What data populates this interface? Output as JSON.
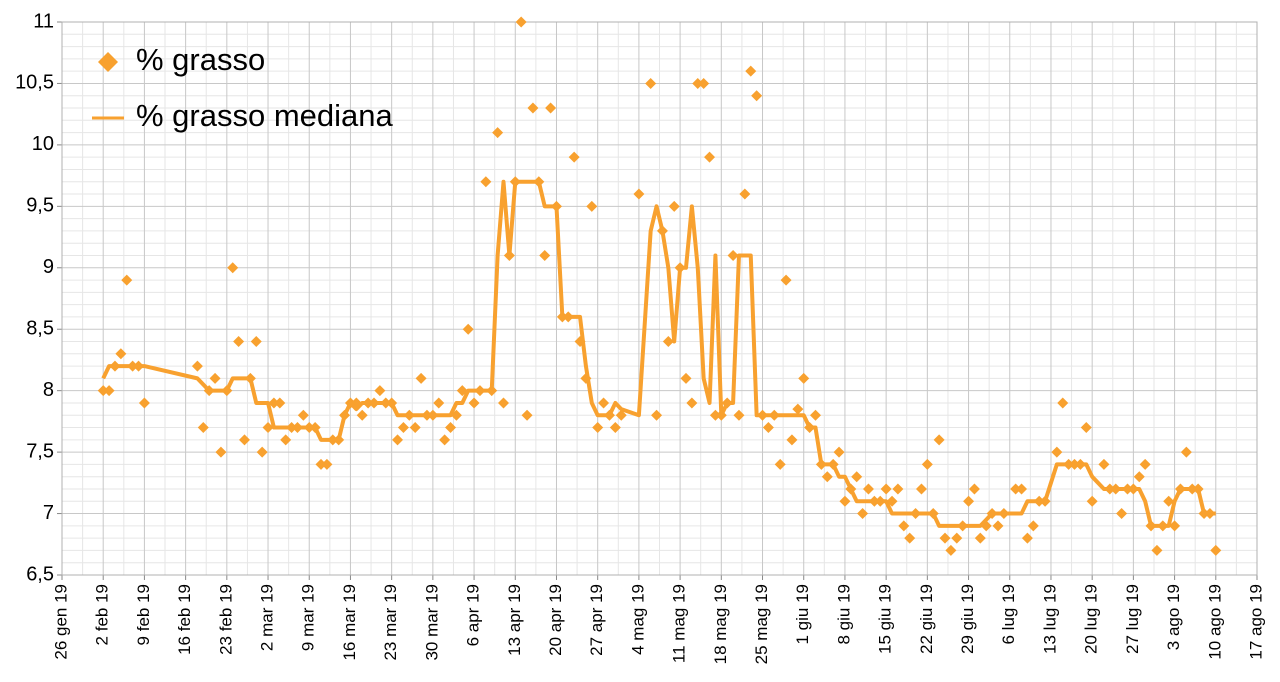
{
  "chart_data": {
    "type": "scatter",
    "x": [
      "2019-02-02",
      "2019-02-03",
      "2019-02-04",
      "2019-02-05",
      "2019-02-06",
      "2019-02-07",
      "2019-02-08",
      "2019-02-09",
      "2019-02-18",
      "2019-02-19",
      "2019-02-20",
      "2019-02-21",
      "2019-02-22",
      "2019-02-23",
      "2019-02-24",
      "2019-02-25",
      "2019-02-26",
      "2019-02-27",
      "2019-02-28",
      "2019-03-01",
      "2019-03-02",
      "2019-03-03",
      "2019-03-04",
      "2019-03-05",
      "2019-03-06",
      "2019-03-07",
      "2019-03-08",
      "2019-03-09",
      "2019-03-10",
      "2019-03-11",
      "2019-03-12",
      "2019-03-13",
      "2019-03-14",
      "2019-03-15",
      "2019-03-16",
      "2019-03-17",
      "2019-03-18",
      "2019-03-19",
      "2019-03-20",
      "2019-03-21",
      "2019-03-22",
      "2019-03-23",
      "2019-03-24",
      "2019-03-25",
      "2019-03-26",
      "2019-03-27",
      "2019-03-28",
      "2019-03-29",
      "2019-03-30",
      "2019-03-31",
      "2019-04-01",
      "2019-04-02",
      "2019-04-03",
      "2019-04-04",
      "2019-04-05",
      "2019-04-06",
      "2019-04-07",
      "2019-04-08",
      "2019-04-09",
      "2019-04-10",
      "2019-04-11",
      "2019-04-12",
      "2019-04-13",
      "2019-04-14",
      "2019-04-15",
      "2019-04-16",
      "2019-04-17",
      "2019-04-18",
      "2019-04-19",
      "2019-04-20",
      "2019-04-21",
      "2019-04-22",
      "2019-04-23",
      "2019-04-24",
      "2019-04-25",
      "2019-04-26",
      "2019-04-27",
      "2019-04-28",
      "2019-04-29",
      "2019-04-30",
      "2019-05-01",
      "2019-05-04",
      "2019-05-06",
      "2019-05-07",
      "2019-05-08",
      "2019-05-09",
      "2019-05-10",
      "2019-05-11",
      "2019-05-12",
      "2019-05-13",
      "2019-05-14",
      "2019-05-15",
      "2019-05-16",
      "2019-05-17",
      "2019-05-18",
      "2019-05-19",
      "2019-05-20",
      "2019-05-21",
      "2019-05-22",
      "2019-05-23",
      "2019-05-24",
      "2019-05-25",
      "2019-05-26",
      "2019-05-27",
      "2019-05-28",
      "2019-05-29",
      "2019-05-30",
      "2019-05-31",
      "2019-06-01",
      "2019-06-02",
      "2019-06-03",
      "2019-06-04",
      "2019-06-05",
      "2019-06-06",
      "2019-06-07",
      "2019-06-08",
      "2019-06-09",
      "2019-06-10",
      "2019-06-11",
      "2019-06-12",
      "2019-06-13",
      "2019-06-14",
      "2019-06-15",
      "2019-06-16",
      "2019-06-17",
      "2019-06-18",
      "2019-06-19",
      "2019-06-20",
      "2019-06-21",
      "2019-06-22",
      "2019-06-23",
      "2019-06-24",
      "2019-06-25",
      "2019-06-26",
      "2019-06-27",
      "2019-06-28",
      "2019-06-29",
      "2019-06-30",
      "2019-07-01",
      "2019-07-02",
      "2019-07-03",
      "2019-07-04",
      "2019-07-05",
      "2019-07-07",
      "2019-07-08",
      "2019-07-09",
      "2019-07-10",
      "2019-07-11",
      "2019-07-12",
      "2019-07-14",
      "2019-07-15",
      "2019-07-16",
      "2019-07-17",
      "2019-07-18",
      "2019-07-19",
      "2019-07-20",
      "2019-07-22",
      "2019-07-23",
      "2019-07-24",
      "2019-07-25",
      "2019-07-26",
      "2019-07-27",
      "2019-07-28",
      "2019-07-29",
      "2019-07-30",
      "2019-07-31",
      "2019-08-01",
      "2019-08-02",
      "2019-08-03",
      "2019-08-04",
      "2019-08-05",
      "2019-08-06",
      "2019-08-07",
      "2019-08-08",
      "2019-08-09",
      "2019-08-10"
    ],
    "series": [
      {
        "name": "% grasso",
        "type": "scatter",
        "color": "#f8a12f",
        "values": [
          8.0,
          8.0,
          8.2,
          8.3,
          8.9,
          8.2,
          8.2,
          7.9,
          8.2,
          7.7,
          8.0,
          8.1,
          7.5,
          8.0,
          9.0,
          8.4,
          7.6,
          8.1,
          8.4,
          7.5,
          7.7,
          7.9,
          7.9,
          7.6,
          7.7,
          7.7,
          7.8,
          7.7,
          7.7,
          7.4,
          7.4,
          7.6,
          7.6,
          7.8,
          7.9,
          7.9,
          7.8,
          7.9,
          7.9,
          8.0,
          7.9,
          7.9,
          7.6,
          7.7,
          7.8,
          7.7,
          8.1,
          7.8,
          7.8,
          7.9,
          7.6,
          7.7,
          7.8,
          8.0,
          8.5,
          7.9,
          8.0,
          9.7,
          8.0,
          10.1,
          7.9,
          9.1,
          9.7,
          11.0,
          7.8,
          10.3,
          9.7,
          9.1,
          10.3,
          9.5,
          8.6,
          8.6,
          9.9,
          8.4,
          8.1,
          9.5,
          7.7,
          7.9,
          7.8,
          7.7,
          7.8,
          9.6,
          10.5,
          7.8,
          9.3,
          8.4,
          9.5,
          9.0,
          8.1,
          7.9,
          10.5,
          10.5,
          9.9,
          7.8,
          7.8,
          7.9,
          9.1,
          7.8,
          9.6,
          10.6,
          10.4,
          7.8,
          7.7,
          7.8,
          7.4,
          8.9,
          7.6,
          7.85,
          8.1,
          7.7,
          7.8,
          7.4,
          7.3,
          7.4,
          7.5,
          7.1,
          7.2,
          7.3,
          7.0,
          7.2,
          7.1,
          7.1,
          7.2,
          7.1,
          7.2,
          6.9,
          6.8,
          7.0,
          7.2,
          7.4,
          7.0,
          7.6,
          6.8,
          6.7,
          6.8,
          6.9,
          7.1,
          7.2,
          6.8,
          6.9,
          7.0,
          6.9,
          7.0,
          7.2,
          7.2,
          6.8,
          6.9,
          7.1,
          7.1,
          7.5,
          7.9,
          7.4,
          7.4,
          7.4,
          7.7,
          7.1,
          7.4,
          7.2,
          7.2,
          7.0,
          7.2,
          7.2,
          7.3,
          7.4,
          6.9,
          6.7,
          6.9,
          7.1,
          6.9,
          7.2,
          7.5,
          7.2,
          7.2,
          7.0,
          7.0,
          6.7
        ]
      },
      {
        "name": "% grasso mediana",
        "type": "line",
        "color": "#f8a12f",
        "values": [
          8.1,
          8.2,
          8.2,
          8.2,
          8.2,
          8.2,
          8.2,
          8.2,
          8.1,
          8.05,
          8.0,
          8.0,
          8.0,
          8.0,
          8.1,
          8.1,
          8.1,
          8.1,
          7.9,
          7.9,
          7.9,
          7.7,
          7.7,
          7.7,
          7.7,
          7.7,
          7.7,
          7.7,
          7.7,
          7.6,
          7.6,
          7.6,
          7.6,
          7.8,
          7.9,
          7.85,
          7.9,
          7.9,
          7.9,
          7.9,
          7.9,
          7.9,
          7.8,
          7.8,
          7.8,
          7.8,
          7.8,
          7.8,
          7.8,
          7.8,
          7.8,
          7.8,
          7.9,
          7.9,
          8.0,
          8.0,
          8.0,
          8.0,
          8.0,
          9.1,
          9.7,
          9.1,
          9.7,
          9.7,
          9.7,
          9.7,
          9.7,
          9.5,
          9.5,
          9.5,
          8.6,
          8.6,
          8.6,
          8.6,
          8.2,
          7.9,
          7.8,
          7.8,
          7.8,
          7.9,
          7.85,
          7.8,
          9.3,
          9.5,
          9.3,
          9.0,
          8.4,
          9.0,
          9.0,
          9.5,
          9.0,
          8.1,
          7.9,
          9.1,
          7.8,
          7.9,
          7.9,
          9.1,
          9.1,
          9.1,
          7.8,
          7.8,
          7.8,
          7.8,
          7.8,
          7.8,
          7.8,
          7.8,
          7.8,
          7.7,
          7.7,
          7.4,
          7.4,
          7.4,
          7.3,
          7.3,
          7.2,
          7.1,
          7.1,
          7.1,
          7.1,
          7.1,
          7.1,
          7.0,
          7.0,
          7.0,
          7.0,
          7.0,
          7.0,
          7.0,
          7.0,
          6.9,
          6.9,
          6.9,
          6.9,
          6.9,
          6.9,
          6.9,
          6.9,
          6.95,
          7.0,
          7.0,
          7.0,
          7.0,
          7.0,
          7.1,
          7.1,
          7.1,
          7.1,
          7.4,
          7.4,
          7.4,
          7.4,
          7.4,
          7.4,
          7.3,
          7.2,
          7.2,
          7.2,
          7.2,
          7.2,
          7.2,
          7.2,
          7.1,
          6.9,
          6.9,
          6.9,
          6.9,
          7.1,
          7.2,
          7.2,
          7.2,
          7.2,
          7.0,
          7.0,
          7.0
        ]
      }
    ],
    "xlim": [
      "2019-01-26",
      "2019-08-17"
    ],
    "xticks": [
      {
        "value": "2019-01-26",
        "label": "26 gen 19"
      },
      {
        "value": "2019-02-02",
        "label": "2 feb 19"
      },
      {
        "value": "2019-02-09",
        "label": "9 feb 19"
      },
      {
        "value": "2019-02-16",
        "label": "16 feb 19"
      },
      {
        "value": "2019-02-23",
        "label": "23 feb 19"
      },
      {
        "value": "2019-03-02",
        "label": "2 mar 19"
      },
      {
        "value": "2019-03-09",
        "label": "9 mar 19"
      },
      {
        "value": "2019-03-16",
        "label": "16 mar 19"
      },
      {
        "value": "2019-03-23",
        "label": "23 mar 19"
      },
      {
        "value": "2019-03-30",
        "label": "30 mar 19"
      },
      {
        "value": "2019-04-06",
        "label": "6 apr 19"
      },
      {
        "value": "2019-04-13",
        "label": "13 apr 19"
      },
      {
        "value": "2019-04-20",
        "label": "20 apr 19"
      },
      {
        "value": "2019-04-27",
        "label": "27 apr 19"
      },
      {
        "value": "2019-05-04",
        "label": "4 mag 19"
      },
      {
        "value": "2019-05-11",
        "label": "11 mag 19"
      },
      {
        "value": "2019-05-18",
        "label": "18 mag 19"
      },
      {
        "value": "2019-05-25",
        "label": "25 mag 19"
      },
      {
        "value": "2019-06-01",
        "label": "1 giu 19"
      },
      {
        "value": "2019-06-08",
        "label": "8 giu 19"
      },
      {
        "value": "2019-06-15",
        "label": "15 giu 19"
      },
      {
        "value": "2019-06-22",
        "label": "22 giu 19"
      },
      {
        "value": "2019-06-29",
        "label": "29 giu 19"
      },
      {
        "value": "2019-07-06",
        "label": "6 lug 19"
      },
      {
        "value": "2019-07-13",
        "label": "13 lug 19"
      },
      {
        "value": "2019-07-20",
        "label": "20 lug 19"
      },
      {
        "value": "2019-07-27",
        "label": "27 lug 19"
      },
      {
        "value": "2019-08-03",
        "label": "3 ago 19"
      },
      {
        "value": "2019-08-10",
        "label": "10 ago 19"
      },
      {
        "value": "2019-08-17",
        "label": "17 ago 19"
      }
    ],
    "ylim": [
      6.5,
      11
    ],
    "yticks": [
      {
        "value": 6.5,
        "label": "6,5"
      },
      7,
      {
        "value": 7.5,
        "label": "7,5"
      },
      8,
      {
        "value": 8.5,
        "label": "8,5"
      },
      9,
      {
        "value": 9.5,
        "label": "9,5"
      },
      10,
      {
        "value": 10.5,
        "label": "10,5"
      },
      11
    ],
    "grid": true,
    "legend": "upper-left"
  }
}
